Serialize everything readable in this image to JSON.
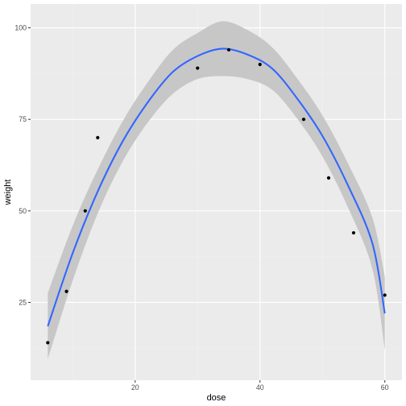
{
  "chart_data": {
    "type": "scatter",
    "title": "",
    "xlabel": "dose",
    "ylabel": "weight",
    "xlim": [
      3.25,
      62.75
    ],
    "ylim": [
      3.75,
      106.5
    ],
    "x_ticks": [
      20,
      40,
      60
    ],
    "y_ticks": [
      25,
      50,
      75,
      100
    ],
    "x_tick_labels": [
      "20",
      "40",
      "60"
    ],
    "y_tick_labels": [
      "25",
      "50",
      "75",
      "100"
    ],
    "grid": true,
    "legend": "none",
    "points": {
      "x": [
        6,
        9,
        12,
        14,
        30,
        35,
        40,
        47,
        51,
        55,
        60
      ],
      "y": [
        14,
        28,
        50,
        70,
        89,
        94,
        90,
        75,
        59,
        44,
        27
      ]
    },
    "fit": {
      "method": "quadratic",
      "x": [
        6,
        10,
        14,
        18,
        22,
        26,
        30,
        34,
        38,
        42,
        46,
        50,
        54,
        58,
        60
      ],
      "y": [
        18.5,
        38.5,
        55.3,
        69.0,
        79.6,
        87.9,
        92.3,
        94.3,
        92.7,
        88.8,
        80.6,
        70.5,
        57.3,
        41.2,
        22.0
      ],
      "ci_lower": [
        9.5,
        31.0,
        49.3,
        63.5,
        74.1,
        81.9,
        86.0,
        86.8,
        86.0,
        83.0,
        75.1,
        64.9,
        51.3,
        34.2,
        12.0
      ],
      "ci_upper": [
        27.5,
        46.0,
        61.3,
        74.5,
        85.1,
        93.9,
        98.6,
        101.8,
        99.4,
        94.6,
        86.1,
        76.1,
        63.3,
        48.2,
        32.0
      ]
    },
    "colors": {
      "panel": "#ebebeb",
      "grid_major": "#ffffff",
      "grid_minor": "#f2f2f2",
      "line": "#3366ff",
      "ribbon": "#c7c7c7",
      "point": "#000000"
    }
  }
}
